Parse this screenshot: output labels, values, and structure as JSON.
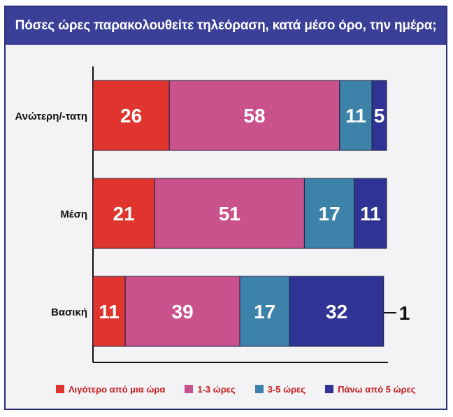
{
  "chart_data": {
    "type": "bar",
    "orientation": "horizontal",
    "stacked": true,
    "title": "Πόσες ώρες παρακολουθείτε τηλεόραση, κατά μέσο όρο, την ημέρα;",
    "categories": [
      "Ανώτερη/-τατη",
      "Μέση",
      "Βασική"
    ],
    "series": [
      {
        "name": "Λιγότερο από μια ώρα",
        "values": [
          26,
          21,
          11
        ],
        "color": "#e0342f"
      },
      {
        "name": "1-3 ώρες",
        "values": [
          58,
          51,
          39
        ],
        "color": "#c9528d"
      },
      {
        "name": "3-5 ώρες",
        "values": [
          11,
          17,
          17
        ],
        "color": "#3d82a8"
      },
      {
        "name": "Πάνω από 5 ώρες",
        "values": [
          5,
          11,
          32
        ],
        "color": "#2e3394"
      }
    ],
    "extra_labels": [
      {
        "category": "Βασική",
        "value": "1"
      }
    ],
    "xlim": [
      0,
      100
    ],
    "grid": false,
    "legend_position": "bottom"
  }
}
